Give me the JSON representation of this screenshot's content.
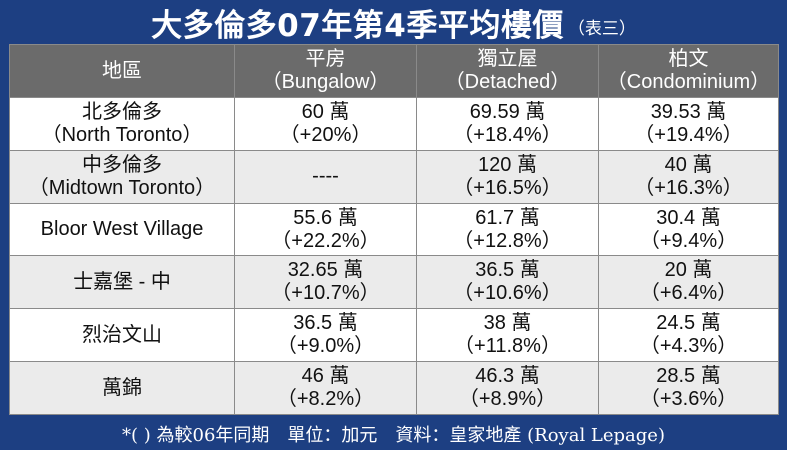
{
  "title": {
    "main": "大多倫多07年第4季平均樓價",
    "sub": "（表三）"
  },
  "table": {
    "headers": [
      {
        "line1": "地區",
        "line2": ""
      },
      {
        "line1": "平房",
        "line2": "（Bungalow）"
      },
      {
        "line1": "獨立屋",
        "line2": "（Detached）"
      },
      {
        "line1": "柏文",
        "line2": "（Condominium）"
      }
    ],
    "rows": [
      {
        "region": {
          "line1": "北多倫多",
          "line2": "（North Toronto）"
        },
        "bungalow": {
          "line1": "60 萬",
          "line2": "（+20%）"
        },
        "detached": {
          "line1": "69.59 萬",
          "line2": "（+18.4%）"
        },
        "condo": {
          "line1": "39.53 萬",
          "line2": "（+19.4%）"
        }
      },
      {
        "region": {
          "line1": "中多倫多",
          "line2": "（Midtown Toronto）"
        },
        "bungalow": {
          "line1": "----",
          "line2": ""
        },
        "detached": {
          "line1": "120 萬",
          "line2": "（+16.5%）"
        },
        "condo": {
          "line1": "40 萬",
          "line2": "（+16.3%）"
        }
      },
      {
        "region": {
          "line1": "Bloor West Village",
          "line2": ""
        },
        "bungalow": {
          "line1": "55.6 萬",
          "line2": "（+22.2%）"
        },
        "detached": {
          "line1": "61.7 萬",
          "line2": "（+12.8%）"
        },
        "condo": {
          "line1": "30.4 萬",
          "line2": "（+9.4%）"
        }
      },
      {
        "region": {
          "line1": "士嘉堡 - 中",
          "line2": ""
        },
        "bungalow": {
          "line1": "32.65 萬",
          "line2": "（+10.7%）"
        },
        "detached": {
          "line1": "36.5 萬",
          "line2": "（+10.6%）"
        },
        "condo": {
          "line1": "20 萬",
          "line2": "（+6.4%）"
        }
      },
      {
        "region": {
          "line1": "烈治文山",
          "line2": ""
        },
        "bungalow": {
          "line1": "36.5 萬",
          "line2": "（+9.0%）"
        },
        "detached": {
          "line1": "38 萬",
          "line2": "（+11.8%）"
        },
        "condo": {
          "line1": "24.5 萬",
          "line2": "（+4.3%）"
        }
      },
      {
        "region": {
          "line1": "萬錦",
          "line2": ""
        },
        "bungalow": {
          "line1": "46 萬",
          "line2": "（+8.2%）"
        },
        "detached": {
          "line1": "46.3 萬",
          "line2": "（+8.9%）"
        },
        "condo": {
          "line1": "28.5 萬",
          "line2": "（+3.6%）"
        }
      }
    ]
  },
  "footer": {
    "text": "*( ) 為較06年同期　單位：加元　資料：皇家地產 (Royal Lepage)"
  },
  "colors": {
    "background": "#1d3f82",
    "header_bg": "#6b6b6b",
    "row_odd": "#ffffff",
    "row_even": "#ebebeb"
  }
}
